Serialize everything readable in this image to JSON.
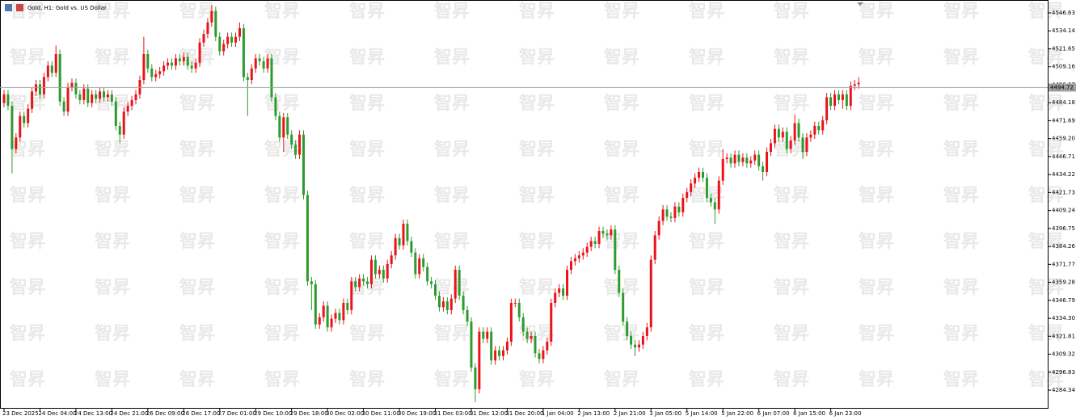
{
  "chart_data": {
    "type": "candlestick",
    "title": "Gold, H1:  Gold vs. US Dollar",
    "watermark": "智昇",
    "up_color": "#e8141a",
    "down_color": "#2e9b2e",
    "last_price": 4494.72,
    "ylim": [
      4272.0,
      4555.6
    ],
    "yticks": [
      4546.63,
      4534.14,
      4521.65,
      4509.16,
      4496.67,
      4484.18,
      4471.69,
      {
        "value": 4459.2,
        "label": "4459.20"
      },
      4446.71,
      4434.22,
      4421.73,
      4409.24,
      4396.75,
      4384.26,
      4371.77,
      4359.28,
      4346.79,
      {
        "value": 4334.3,
        "label": "4334.30"
      },
      4321.81,
      4309.32,
      4296.83,
      4284.34
    ],
    "categories": [
      "23 Dec 2025",
      null,
      null,
      null,
      null,
      null,
      null,
      null,
      null,
      "24 Dec 04:00",
      null,
      null,
      null,
      null,
      null,
      null,
      null,
      null,
      "24 Dec 13:00",
      null,
      null,
      null,
      null,
      null,
      null,
      null,
      null,
      "24 Dec 21:00",
      null,
      null,
      null,
      null,
      null,
      null,
      null,
      null,
      "26 Dec 09:00",
      null,
      null,
      null,
      null,
      null,
      null,
      null,
      null,
      "26 Dec 17:00",
      null,
      null,
      null,
      null,
      null,
      null,
      null,
      null,
      "27 Dec 01:00",
      null,
      null,
      null,
      null,
      null,
      null,
      null,
      null,
      "29 Dec 10:00",
      null,
      null,
      null,
      null,
      null,
      null,
      null,
      null,
      "29 Dec 18:00",
      null,
      null,
      null,
      null,
      null,
      null,
      null,
      null,
      "30 Dec 02:00",
      null,
      null,
      null,
      null,
      null,
      null,
      null,
      null,
      "30 Dec 11:00",
      null,
      null,
      null,
      null,
      null,
      null,
      null,
      null,
      "30 Dec 19:00",
      null,
      null,
      null,
      null,
      null,
      null,
      null,
      null,
      "31 Dec 03:00",
      null,
      null,
      null,
      null,
      null,
      null,
      null,
      null,
      "31 Dec 12:00",
      null,
      null,
      null,
      null,
      null,
      null,
      null,
      null,
      "31 Dec 20:00",
      null,
      null,
      null,
      null,
      null,
      null,
      null,
      null,
      "1 Jan 04:00",
      null,
      null,
      null,
      null,
      null,
      null,
      null,
      null,
      "2 Jan 13:00",
      null,
      null,
      null,
      null,
      null,
      null,
      null,
      null,
      "2 Jan 21:00",
      null,
      null,
      null,
      null,
      null,
      null,
      null,
      null,
      "3 Jan 05:00",
      null,
      null,
      null,
      null,
      null,
      null,
      null,
      null,
      "5 Jan 14:00",
      null,
      null,
      null,
      null,
      null,
      null,
      null,
      null,
      "5 Jan 22:00",
      null,
      null,
      null,
      null,
      null,
      null,
      null,
      null,
      "6 Jan 07:00",
      null,
      null,
      null,
      null,
      null,
      null,
      null,
      null,
      "6 Jan 15:00",
      null,
      null,
      null,
      null,
      null,
      null,
      null,
      null,
      "6 Jan 23:00",
      null,
      null,
      null,
      null,
      null,
      null,
      null
    ],
    "open": [
      4484,
      4490,
      4482,
      4452,
      4460,
      4475,
      4470,
      4480,
      4492,
      4497,
      4490,
      4502,
      4510,
      4505,
      4518,
      4485,
      4478,
      4495,
      4498,
      4490,
      4486,
      4494,
      4484,
      4490,
      4487,
      4492,
      4488,
      4490,
      4485,
      4468,
      4462,
      4478,
      4482,
      4486,
      4490,
      4500,
      4518,
      4508,
      4502,
      4504,
      4506,
      4510,
      4512,
      4510,
      4515,
      4513,
      4516,
      4510,
      4508,
      4512,
      4526,
      4532,
      4540,
      4548,
      4530,
      4520,
      4525,
      4530,
      4526,
      4530,
      4536,
      4502,
      4500,
      4508,
      4515,
      4513,
      4508,
      4515,
      4488,
      4475,
      4460,
      4474,
      4462,
      4455,
      4448,
      4462,
      4420,
      4360,
      4358,
      4330,
      4335,
      4343,
      4328,
      4334,
      4338,
      4333,
      4345,
      4340,
      4360,
      4356,
      4362,
      4360,
      4358,
      4375,
      4365,
      4368,
      4362,
      4372,
      4378,
      4390,
      4385,
      4400,
      4388,
      4380,
      4365,
      4376,
      4370,
      4360,
      4358,
      4350,
      4342,
      4346,
      4340,
      4348,
      4368,
      4350,
      4340,
      4332,
      4300,
      4285,
      4325,
      4320,
      4325,
      4305,
      4312,
      4308,
      4312,
      4318,
      4345,
      4345,
      4335,
      4325,
      4320,
      4322,
      4310,
      4306,
      4312,
      4318,
      4345,
      4352,
      4355,
      4350,
      4368,
      4374,
      4376,
      4378,
      4380,
      4384,
      4388,
      4386,
      4395,
      4393,
      4392,
      4396,
      4368,
      4352,
      4332,
      4322,
      4316,
      4314,
      4316,
      4322,
      4328,
      4375,
      4392,
      4402,
      4410,
      4405,
      4404,
      4412,
      4408,
      4418,
      4422,
      4428,
      4432,
      4436,
      4432,
      4418,
      4415,
      4410,
      4430,
      4445,
      4446,
      4442,
      4448,
      4443,
      4446,
      4442,
      4444,
      4448,
      4440,
      4436,
      4450,
      4456,
      4466,
      4460,
      4464,
      4452,
      4458,
      4470,
      4460,
      4450,
      4460,
      4462,
      4468,
      4465,
      4472,
      4488,
      4482,
      4490,
      4486,
      4490,
      4482,
      4496,
      4497
    ],
    "high": [
      4493,
      4493,
      4485,
      4463,
      4478,
      4478,
      4483,
      4495,
      4500,
      4500,
      4505,
      4513,
      4513,
      4524,
      4521,
      4488,
      4498,
      4501,
      4501,
      4493,
      4497,
      4497,
      4493,
      4493,
      4495,
      4495,
      4493,
      4493,
      4488,
      4471,
      4481,
      4485,
      4489,
      4493,
      4503,
      4530,
      4521,
      4511,
      4507,
      4509,
      4513,
      4515,
      4515,
      4518,
      4518,
      4519,
      4519,
      4513,
      4515,
      4529,
      4535,
      4543,
      4552,
      4551,
      4533,
      4528,
      4533,
      4533,
      4533,
      4540,
      4539,
      4505,
      4511,
      4518,
      4518,
      4516,
      4518,
      4518,
      4491,
      4478,
      4477,
      4477,
      4465,
      4458,
      4465,
      4465,
      4423,
      4363,
      4361,
      4338,
      4346,
      4346,
      4337,
      4341,
      4341,
      4348,
      4348,
      4363,
      4363,
      4365,
      4365,
      4363,
      4378,
      4378,
      4371,
      4371,
      4375,
      4381,
      4393,
      4393,
      4403,
      4403,
      4391,
      4383,
      4379,
      4379,
      4373,
      4363,
      4361,
      4353,
      4349,
      4349,
      4351,
      4371,
      4371,
      4353,
      4343,
      4335,
      4303,
      4328,
      4328,
      4328,
      4328,
      4315,
      4315,
      4315,
      4321,
      4348,
      4348,
      4348,
      4338,
      4328,
      4325,
      4325,
      4313,
      4315,
      4321,
      4348,
      4355,
      4358,
      4358,
      4371,
      4377,
      4379,
      4381,
      4383,
      4387,
      4391,
      4391,
      4398,
      4398,
      4396,
      4399,
      4399,
      4371,
      4355,
      4335,
      4325,
      4319,
      4319,
      4325,
      4331,
      4378,
      4395,
      4405,
      4413,
      4413,
      4408,
      4415,
      4415,
      4421,
      4425,
      4431,
      4435,
      4439,
      4439,
      4435,
      4421,
      4418,
      4433,
      4452,
      4449,
      4449,
      4451,
      4451,
      4449,
      4449,
      4447,
      4451,
      4451,
      4443,
      4453,
      4459,
      4469,
      4469,
      4467,
      4467,
      4461,
      4476,
      4473,
      4463,
      4463,
      4465,
      4471,
      4471,
      4475,
      4491,
      4491,
      4493,
      4493,
      4493,
      4493,
      4499,
      4500,
      4502
    ],
    "low": [
      4481,
      4479,
      4435,
      4449,
      4457,
      4467,
      4467,
      4477,
      4489,
      4487,
      4487,
      4499,
      4502,
      4502,
      4482,
      4475,
      4475,
      4492,
      4487,
      4483,
      4483,
      4481,
      4481,
      4484,
      4484,
      4485,
      4485,
      4482,
      4465,
      4456,
      4459,
      4475,
      4479,
      4483,
      4487,
      4497,
      4505,
      4499,
      4499,
      4501,
      4503,
      4507,
      4507,
      4507,
      4510,
      4510,
      4507,
      4505,
      4505,
      4509,
      4523,
      4529,
      4537,
      4527,
      4517,
      4517,
      4522,
      4523,
      4523,
      4527,
      4499,
      4475,
      4497,
      4505,
      4510,
      4505,
      4505,
      4485,
      4472,
      4457,
      4450,
      4459,
      4452,
      4445,
      4445,
      4417,
      4357,
      4340,
      4327,
      4327,
      4332,
      4325,
      4325,
      4331,
      4330,
      4330,
      4337,
      4337,
      4353,
      4353,
      4357,
      4355,
      4355,
      4362,
      4362,
      4359,
      4359,
      4369,
      4375,
      4382,
      4382,
      4385,
      4377,
      4362,
      4362,
      4367,
      4357,
      4355,
      4347,
      4339,
      4339,
      4337,
      4337,
      4345,
      4347,
      4337,
      4329,
      4297,
      4276,
      4282,
      4317,
      4317,
      4302,
      4302,
      4305,
      4305,
      4309,
      4315,
      4342,
      4332,
      4322,
      4317,
      4317,
      4307,
      4303,
      4303,
      4309,
      4315,
      4342,
      4349,
      4347,
      4347,
      4365,
      4371,
      4373,
      4375,
      4377,
      4381,
      4383,
      4383,
      4390,
      4389,
      4389,
      4365,
      4349,
      4329,
      4319,
      4313,
      4308,
      4311,
      4313,
      4319,
      4325,
      4372,
      4389,
      4399,
      4402,
      4401,
      4401,
      4405,
      4405,
      4415,
      4419,
      4425,
      4429,
      4429,
      4415,
      4412,
      4400,
      4407,
      4427,
      4442,
      4439,
      4439,
      4440,
      4440,
      4439,
      4439,
      4441,
      4437,
      4430,
      4433,
      4447,
      4453,
      4457,
      4457,
      4449,
      4449,
      4455,
      4457,
      4445,
      4447,
      4457,
      4459,
      4462,
      4462,
      4469,
      4479,
      4479,
      4483,
      4480,
      4479,
      4479,
      4493,
      4494
    ],
    "close": [
      4490,
      4482,
      4452,
      4460,
      4475,
      4470,
      4480,
      4492,
      4497,
      4490,
      4502,
      4510,
      4505,
      4518,
      4485,
      4478,
      4495,
      4498,
      4490,
      4486,
      4494,
      4484,
      4490,
      4487,
      4492,
      4488,
      4490,
      4485,
      4468,
      4462,
      4478,
      4482,
      4486,
      4490,
      4500,
      4518,
      4508,
      4502,
      4504,
      4506,
      4510,
      4512,
      4510,
      4515,
      4513,
      4516,
      4510,
      4508,
      4512,
      4526,
      4532,
      4540,
      4548,
      4530,
      4520,
      4525,
      4530,
      4526,
      4530,
      4536,
      4502,
      4500,
      4508,
      4515,
      4513,
      4508,
      4515,
      4488,
      4475,
      4460,
      4474,
      4462,
      4455,
      4448,
      4462,
      4420,
      4360,
      4358,
      4330,
      4335,
      4343,
      4328,
      4334,
      4338,
      4333,
      4345,
      4340,
      4360,
      4356,
      4362,
      4360,
      4358,
      4375,
      4365,
      4368,
      4362,
      4372,
      4378,
      4390,
      4385,
      4400,
      4388,
      4380,
      4365,
      4376,
      4370,
      4360,
      4358,
      4350,
      4342,
      4346,
      4340,
      4348,
      4368,
      4350,
      4340,
      4332,
      4300,
      4285,
      4325,
      4320,
      4325,
      4305,
      4312,
      4308,
      4312,
      4318,
      4345,
      4345,
      4335,
      4325,
      4320,
      4322,
      4310,
      4306,
      4312,
      4318,
      4345,
      4352,
      4355,
      4350,
      4368,
      4374,
      4376,
      4378,
      4380,
      4384,
      4388,
      4386,
      4395,
      4393,
      4392,
      4396,
      4368,
      4352,
      4332,
      4322,
      4316,
      4314,
      4316,
      4322,
      4328,
      4375,
      4392,
      4402,
      4410,
      4405,
      4404,
      4412,
      4408,
      4418,
      4422,
      4428,
      4432,
      4436,
      4432,
      4418,
      4415,
      4410,
      4430,
      4445,
      4446,
      4442,
      4448,
      4443,
      4446,
      4442,
      4444,
      4448,
      4440,
      4436,
      4450,
      4456,
      4466,
      4460,
      4464,
      4452,
      4458,
      4470,
      4460,
      4450,
      4460,
      4462,
      4468,
      4465,
      4472,
      4488,
      4482,
      4490,
      4486,
      4490,
      4482,
      4496,
      4497,
      4498
    ]
  }
}
